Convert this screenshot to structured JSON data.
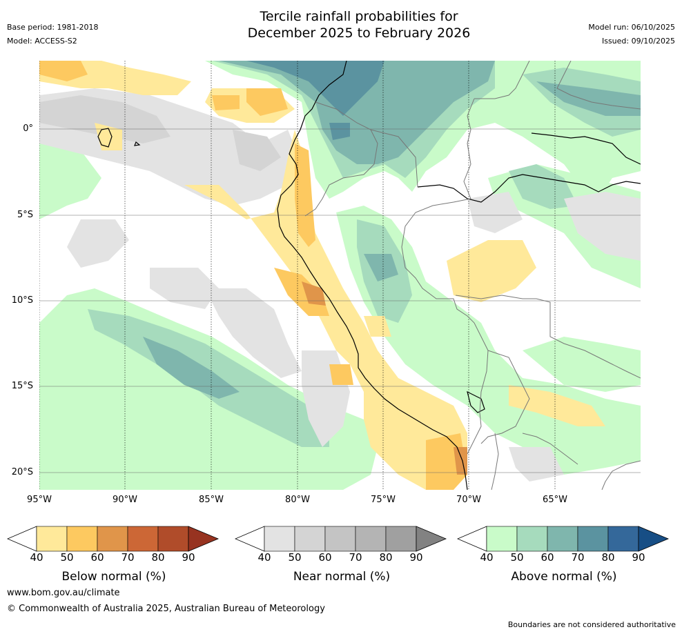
{
  "header": {
    "title_line1": "Tercile rainfall probabilities for",
    "title_line2": "December 2025 to February 2026",
    "base_period": "Base period: 1981-2018",
    "model": "Model: ACCESS-S2",
    "model_run": "Model run: 06/10/2025",
    "issued": "Issued: 09/10/2025"
  },
  "map": {
    "longitude_labels": [
      "95°W",
      "90°W",
      "85°W",
      "80°W",
      "75°W",
      "70°W",
      "65°W"
    ],
    "latitude_labels": [
      "0°",
      "5°S",
      "10°S",
      "15°S",
      "20°S"
    ]
  },
  "colorbars": [
    {
      "title": "Below normal (%)",
      "ticks": [
        "40",
        "50",
        "60",
        "70",
        "80",
        "90"
      ],
      "colors": [
        "#ffffff",
        "#ffe99a",
        "#fdc960",
        "#e0954a",
        "#cc6736",
        "#b04c2a",
        "#973320"
      ]
    },
    {
      "title": "Near normal (%)",
      "ticks": [
        "40",
        "50",
        "60",
        "70",
        "80",
        "90"
      ],
      "colors": [
        "#ffffff",
        "#e3e3e3",
        "#d4d4d4",
        "#c4c4c4",
        "#b4b4b4",
        "#a0a0a0",
        "#828282"
      ]
    },
    {
      "title": "Above normal (%)",
      "ticks": [
        "40",
        "50",
        "60",
        "70",
        "80",
        "90"
      ],
      "colors": [
        "#ffffff",
        "#c9fbc9",
        "#a6dbbd",
        "#7fb6ad",
        "#5b93a0",
        "#34689a",
        "#174e85"
      ]
    }
  ],
  "footer": {
    "url": "www.bom.gov.au/climate",
    "copyright": "© Commonwealth of Australia 2025, Australian Bureau of Meteorology",
    "disclaimer": "Boundaries are not considered authoritative"
  }
}
